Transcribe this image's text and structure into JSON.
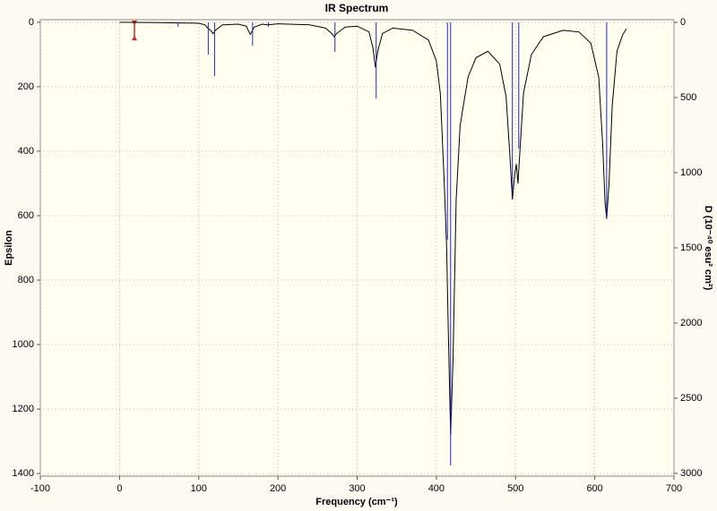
{
  "chart_data": {
    "type": "line",
    "title": "IR Spectrum",
    "xlabel": "Frequency (cm⁻¹)",
    "ylabel": "Epsilon",
    "y2label": "D (10⁻⁴⁰ esu² cm²)",
    "xlim": [
      -100,
      700
    ],
    "xticks": [
      -100,
      0,
      100,
      200,
      300,
      400,
      500,
      600,
      700
    ],
    "ylim": [
      -8,
      1408
    ],
    "yticks": [
      0,
      200,
      400,
      600,
      800,
      1000,
      1200,
      1400
    ],
    "y2lim": [
      -18,
      3018
    ],
    "y2ticks": [
      0,
      500,
      1000,
      1500,
      2000,
      2500,
      3000
    ],
    "y_inverted": true,
    "grid": true,
    "series": [
      {
        "type": "line",
        "color": "#000000",
        "x": [
          0,
          50,
          100,
          108,
          112,
          115,
          118,
          121,
          130,
          150,
          160,
          165,
          170,
          180,
          187,
          200,
          240,
          260,
          268,
          271,
          274,
          285,
          300,
          315,
          320,
          323,
          326,
          332,
          345,
          370,
          390,
          400,
          405,
          410,
          413,
          415,
          418,
          421,
          425,
          430,
          440,
          450,
          465,
          480,
          488,
          493,
          496,
          499,
          501,
          503,
          506,
          510,
          520,
          535,
          560,
          580,
          595,
          605,
          610,
          613,
          615,
          618,
          622,
          628,
          635,
          640
        ],
        "values": [
          0,
          1,
          3,
          8,
          20,
          25,
          35,
          25,
          8,
          6,
          12,
          38,
          15,
          6,
          8,
          5,
          8,
          18,
          35,
          45,
          35,
          15,
          12,
          30,
          80,
          140,
          90,
          35,
          18,
          25,
          55,
          120,
          220,
          500,
          700,
          950,
          1280,
          1050,
          550,
          320,
          170,
          110,
          90,
          130,
          230,
          420,
          550,
          470,
          440,
          500,
          380,
          220,
          100,
          45,
          25,
          30,
          65,
          170,
          380,
          560,
          610,
          500,
          260,
          90,
          40,
          20
        ]
      },
      {
        "type": "stick",
        "color": "#2323c8",
        "axis": "y2",
        "x": [
          74,
          112,
          120,
          168,
          188,
          272,
          324,
          414,
          418,
          496,
          504,
          615
        ],
        "values": [
          30,
          214,
          357,
          155,
          30,
          196,
          506,
          1446,
          2946,
          1131,
          839,
          1298
        ]
      }
    ]
  }
}
